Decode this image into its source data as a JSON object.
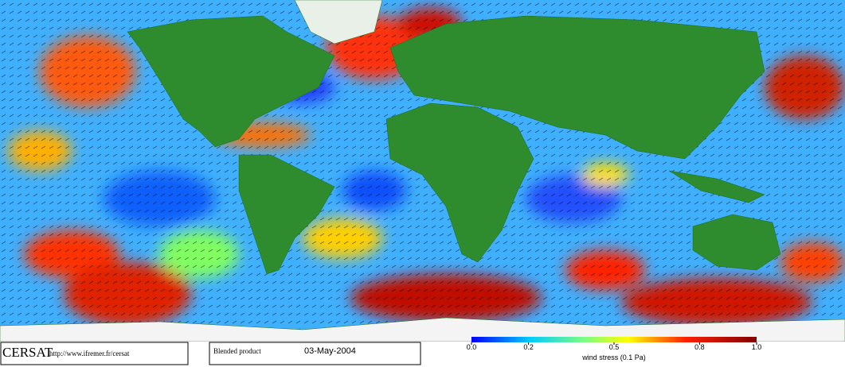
{
  "footer": {
    "logo": "CERSAT",
    "url": "http://www.ifremer.fr/cersat",
    "product": "Blended product",
    "date": "03-May-2004"
  },
  "colorbar": {
    "label": "wind stress (0.1 Pa)",
    "lim": [
      0,
      1
    ],
    "ticks": [
      {
        "value": 0,
        "label": "0.0"
      },
      0.2,
      0.5,
      0.8,
      {
        "value": 1,
        "label": "1.0"
      }
    ]
  }
}
